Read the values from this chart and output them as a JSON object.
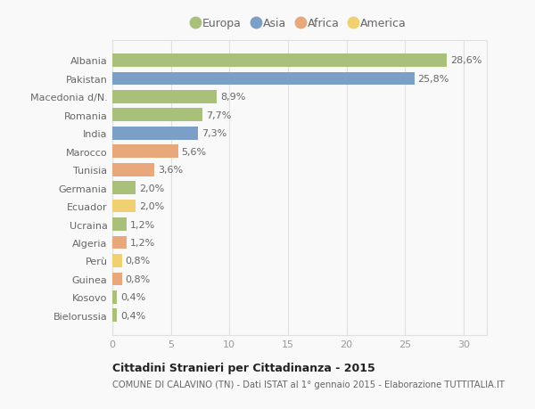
{
  "countries": [
    "Albania",
    "Pakistan",
    "Macedonia d/N.",
    "Romania",
    "India",
    "Marocco",
    "Tunisia",
    "Germania",
    "Ecuador",
    "Ucraina",
    "Algeria",
    "Perù",
    "Guinea",
    "Kosovo",
    "Bielorussia"
  ],
  "values": [
    28.6,
    25.8,
    8.9,
    7.7,
    7.3,
    5.6,
    3.6,
    2.0,
    2.0,
    1.2,
    1.2,
    0.8,
    0.8,
    0.4,
    0.4
  ],
  "labels": [
    "28,6%",
    "25,8%",
    "8,9%",
    "7,7%",
    "7,3%",
    "5,6%",
    "3,6%",
    "2,0%",
    "2,0%",
    "1,2%",
    "1,2%",
    "0,8%",
    "0,8%",
    "0,4%",
    "0,4%"
  ],
  "continents": [
    "Europa",
    "Asia",
    "Europa",
    "Europa",
    "Asia",
    "Africa",
    "Africa",
    "Europa",
    "America",
    "Europa",
    "Africa",
    "America",
    "Africa",
    "Europa",
    "Europa"
  ],
  "colors": {
    "Europa": "#a8c07a",
    "Asia": "#7b9fc7",
    "Africa": "#e8a87c",
    "America": "#f0d070"
  },
  "legend_order": [
    "Europa",
    "Asia",
    "Africa",
    "America"
  ],
  "title_line1": "Cittadini Stranieri per Cittadinanza - 2015",
  "title_line2": "COMUNE DI CALAVINO (TN) - Dati ISTAT al 1° gennaio 2015 - Elaborazione TUTTITALIA.IT",
  "xlim": [
    0,
    32
  ],
  "xticks": [
    0,
    5,
    10,
    15,
    20,
    25,
    30
  ],
  "background_color": "#f9f9f9",
  "grid_color": "#e0e0e0",
  "bar_height": 0.72,
  "label_fontsize": 8.0,
  "tick_fontsize": 8.0
}
